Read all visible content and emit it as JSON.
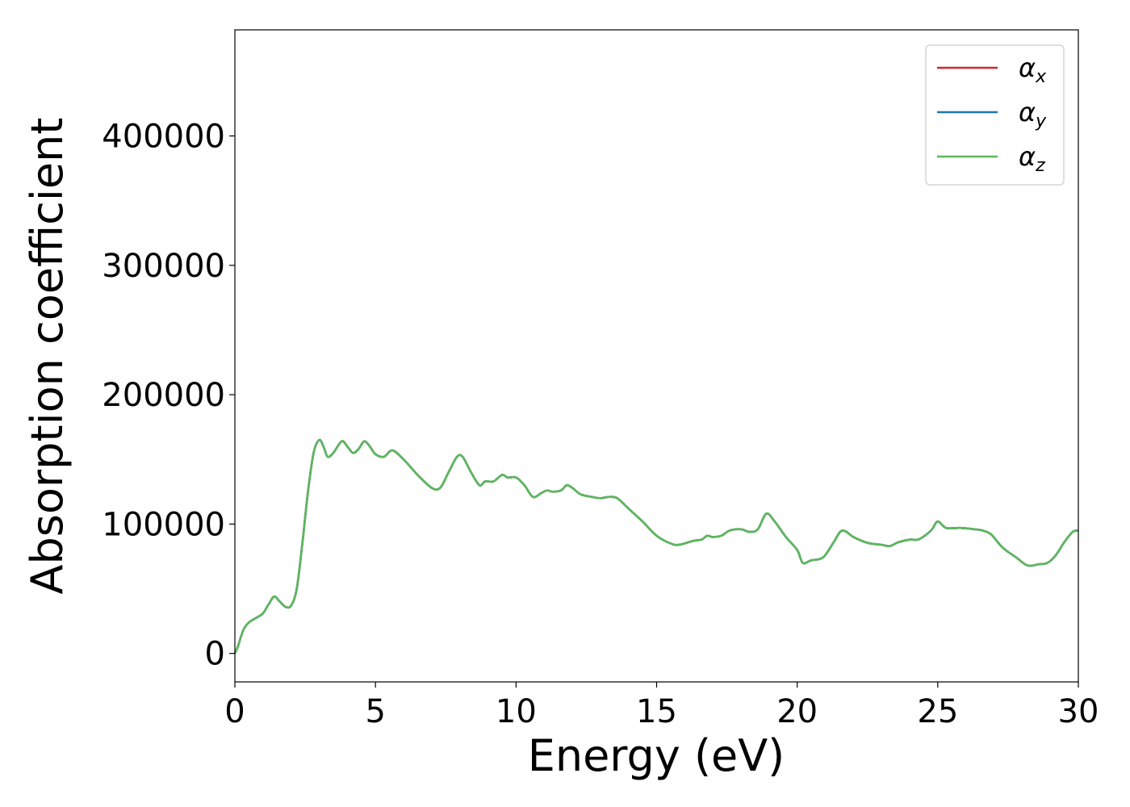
{
  "chart_data": {
    "type": "line",
    "title": "",
    "xlabel": "Energy (eV)",
    "ylabel": "Absorption coefficient",
    "xlim": [
      0,
      30
    ],
    "ylim": [
      -22000,
      482000
    ],
    "xticks": [
      0,
      5,
      10,
      15,
      20,
      25,
      30
    ],
    "yticks": [
      0,
      100000,
      200000,
      300000,
      400000
    ],
    "grid": false,
    "legend": "top-right",
    "series": [
      {
        "name": "α",
        "subscript": "x",
        "color": "#d62728",
        "x": [
          0,
          0.1,
          0.3,
          0.5,
          0.8,
          1.0,
          1.2,
          1.4,
          1.6,
          1.8,
          2.0,
          2.2,
          2.4,
          2.6,
          2.8,
          3.0,
          3.15,
          3.3,
          3.5,
          3.8,
          4.0,
          4.2,
          4.4,
          4.6,
          4.8,
          5.0,
          5.3,
          5.6,
          6.0,
          6.5,
          7.0,
          7.3,
          7.6,
          7.9,
          8.1,
          8.4,
          8.7,
          8.9,
          9.2,
          9.5,
          9.7,
          10.0,
          10.3,
          10.6,
          10.9,
          11.1,
          11.3,
          11.6,
          11.8,
          12.0,
          12.3,
          12.7,
          13.0,
          13.3,
          13.6,
          14.0,
          14.5,
          15.0,
          15.5,
          15.8,
          16.3,
          16.6,
          16.8,
          17.0,
          17.3,
          17.6,
          18.0,
          18.3,
          18.6,
          18.9,
          19.2,
          19.6,
          20.0,
          20.2,
          20.5,
          20.8,
          21.0,
          21.3,
          21.6,
          22.0,
          22.3,
          22.6,
          23.0,
          23.3,
          23.6,
          24.0,
          24.3,
          24.6,
          24.8,
          25.0,
          25.3,
          25.8,
          26.3,
          26.6,
          26.9,
          27.3,
          27.8,
          28.2,
          28.6,
          28.9,
          29.2,
          29.5,
          29.8,
          30.0
        ],
        "y": [
          0,
          5000,
          18000,
          24000,
          28000,
          31000,
          38000,
          44000,
          40000,
          36000,
          37000,
          50000,
          85000,
          125000,
          155000,
          165000,
          160000,
          152000,
          155000,
          164000,
          160000,
          155000,
          158000,
          164000,
          160000,
          154000,
          152000,
          157000,
          150000,
          138000,
          128000,
          128000,
          140000,
          152000,
          152000,
          140000,
          130000,
          133000,
          133000,
          138000,
          136000,
          136000,
          130000,
          121000,
          124000,
          126000,
          125000,
          126000,
          130000,
          128000,
          123000,
          121000,
          120000,
          121000,
          120000,
          112000,
          102000,
          91000,
          85000,
          84000,
          87000,
          88000,
          91000,
          90000,
          91000,
          95000,
          96000,
          94000,
          96000,
          108000,
          102000,
          90000,
          80000,
          70000,
          72000,
          73000,
          76000,
          86000,
          95000,
          90000,
          87000,
          85000,
          84000,
          83000,
          86000,
          88000,
          88000,
          92000,
          96000,
          102000,
          97000,
          97000,
          96000,
          95000,
          92000,
          82000,
          74000,
          68000,
          69000,
          70000,
          76000,
          86000,
          94000,
          95000
        ]
      },
      {
        "name": "α",
        "subscript": "y",
        "color": "#1f77b4",
        "x": [
          0,
          0.1,
          0.3,
          0.5,
          0.8,
          1.0,
          1.2,
          1.4,
          1.6,
          1.8,
          2.0,
          2.2,
          2.4,
          2.6,
          2.8,
          3.0,
          3.15,
          3.3,
          3.5,
          3.8,
          4.0,
          4.2,
          4.4,
          4.6,
          4.8,
          5.0,
          5.3,
          5.6,
          6.0,
          6.5,
          7.0,
          7.3,
          7.6,
          7.9,
          8.1,
          8.4,
          8.7,
          8.9,
          9.2,
          9.5,
          9.7,
          10.0,
          10.3,
          10.6,
          10.9,
          11.1,
          11.3,
          11.6,
          11.8,
          12.0,
          12.3,
          12.7,
          13.0,
          13.3,
          13.6,
          14.0,
          14.5,
          15.0,
          15.5,
          15.8,
          16.3,
          16.6,
          16.8,
          17.0,
          17.3,
          17.6,
          18.0,
          18.3,
          18.6,
          18.9,
          19.2,
          19.6,
          20.0,
          20.2,
          20.5,
          20.8,
          21.0,
          21.3,
          21.6,
          22.0,
          22.3,
          22.6,
          23.0,
          23.3,
          23.6,
          24.0,
          24.3,
          24.6,
          24.8,
          25.0,
          25.3,
          25.8,
          26.3,
          26.6,
          26.9,
          27.3,
          27.8,
          28.2,
          28.6,
          28.9,
          29.2,
          29.5,
          29.8,
          30.0
        ],
        "y": [
          0,
          5000,
          18000,
          24000,
          28000,
          31000,
          38000,
          44000,
          40000,
          36000,
          37000,
          50000,
          85000,
          125000,
          155000,
          165000,
          160000,
          152000,
          155000,
          164000,
          160000,
          155000,
          158000,
          164000,
          160000,
          154000,
          152000,
          157000,
          150000,
          138000,
          128000,
          128000,
          140000,
          152000,
          152000,
          140000,
          130000,
          133000,
          133000,
          138000,
          136000,
          136000,
          130000,
          121000,
          124000,
          126000,
          125000,
          126000,
          130000,
          128000,
          123000,
          121000,
          120000,
          121000,
          120000,
          112000,
          102000,
          91000,
          85000,
          84000,
          87000,
          88000,
          91000,
          90000,
          91000,
          95000,
          96000,
          94000,
          96000,
          108000,
          102000,
          90000,
          80000,
          70000,
          72000,
          73000,
          76000,
          86000,
          95000,
          90000,
          87000,
          85000,
          84000,
          83000,
          86000,
          88000,
          88000,
          92000,
          96000,
          102000,
          97000,
          97000,
          96000,
          95000,
          92000,
          82000,
          74000,
          68000,
          69000,
          70000,
          76000,
          86000,
          94000,
          95000
        ]
      },
      {
        "name": "α",
        "subscript": "z",
        "color": "#5cb85c",
        "x": [
          0,
          0.1,
          0.3,
          0.5,
          0.8,
          1.0,
          1.2,
          1.4,
          1.6,
          1.8,
          2.0,
          2.2,
          2.4,
          2.6,
          2.8,
          3.0,
          3.15,
          3.3,
          3.5,
          3.8,
          4.0,
          4.2,
          4.4,
          4.6,
          4.8,
          5.0,
          5.3,
          5.6,
          6.0,
          6.5,
          7.0,
          7.3,
          7.6,
          7.9,
          8.1,
          8.4,
          8.7,
          8.9,
          9.2,
          9.5,
          9.7,
          10.0,
          10.3,
          10.6,
          10.9,
          11.1,
          11.3,
          11.6,
          11.8,
          12.0,
          12.3,
          12.7,
          13.0,
          13.3,
          13.6,
          14.0,
          14.5,
          15.0,
          15.5,
          15.8,
          16.3,
          16.6,
          16.8,
          17.0,
          17.3,
          17.6,
          18.0,
          18.3,
          18.6,
          18.9,
          19.2,
          19.6,
          20.0,
          20.2,
          20.5,
          20.8,
          21.0,
          21.3,
          21.6,
          22.0,
          22.3,
          22.6,
          23.0,
          23.3,
          23.6,
          24.0,
          24.3,
          24.6,
          24.8,
          25.0,
          25.3,
          25.8,
          26.3,
          26.6,
          26.9,
          27.3,
          27.8,
          28.2,
          28.6,
          28.9,
          29.2,
          29.5,
          29.8,
          30.0
        ],
        "y": [
          0,
          5000,
          18000,
          24000,
          28000,
          31000,
          38000,
          44000,
          40000,
          36000,
          37000,
          50000,
          85000,
          125000,
          155000,
          165000,
          160000,
          152000,
          155000,
          164000,
          160000,
          155000,
          158000,
          164000,
          160000,
          154000,
          152000,
          157000,
          150000,
          138000,
          128000,
          128000,
          140000,
          152000,
          152000,
          140000,
          130000,
          133000,
          133000,
          138000,
          136000,
          136000,
          130000,
          121000,
          124000,
          126000,
          125000,
          126000,
          130000,
          128000,
          123000,
          121000,
          120000,
          121000,
          120000,
          112000,
          102000,
          91000,
          85000,
          84000,
          87000,
          88000,
          91000,
          90000,
          91000,
          95000,
          96000,
          94000,
          96000,
          108000,
          102000,
          90000,
          80000,
          70000,
          72000,
          73000,
          76000,
          86000,
          95000,
          90000,
          87000,
          85000,
          84000,
          83000,
          86000,
          88000,
          88000,
          92000,
          96000,
          102000,
          97000,
          97000,
          96000,
          95000,
          92000,
          82000,
          74000,
          68000,
          69000,
          70000,
          76000,
          86000,
          94000,
          95000
        ]
      }
    ]
  }
}
